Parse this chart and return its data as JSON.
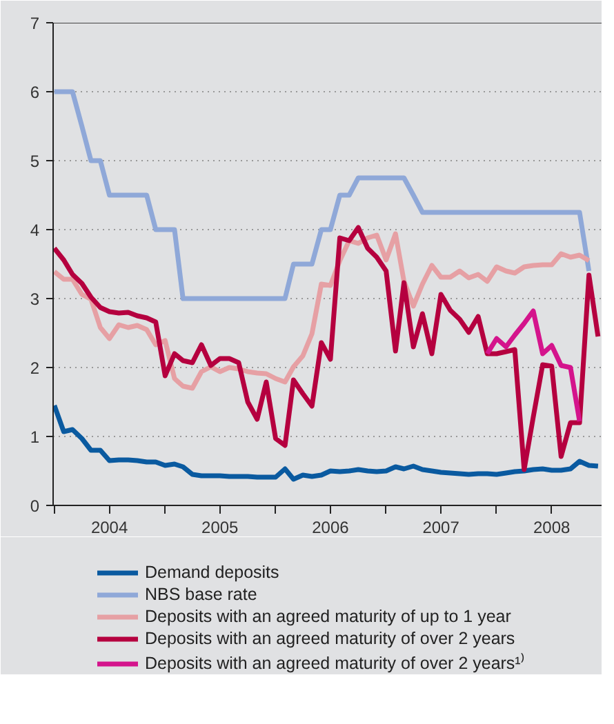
{
  "chart_data": {
    "type": "line",
    "x": [
      "2004-01",
      "2004-02",
      "2004-03",
      "2004-04",
      "2004-05",
      "2004-06",
      "2004-07",
      "2004-08",
      "2004-09",
      "2004-10",
      "2004-11",
      "2004-12",
      "2005-01",
      "2005-02",
      "2005-03",
      "2005-04",
      "2005-05",
      "2005-06",
      "2005-07",
      "2005-08",
      "2005-09",
      "2005-10",
      "2005-11",
      "2005-12",
      "2006-01",
      "2006-02",
      "2006-03",
      "2006-04",
      "2006-05",
      "2006-06",
      "2006-07",
      "2006-08",
      "2006-09",
      "2006-10",
      "2006-11",
      "2006-12",
      "2007-01",
      "2007-02",
      "2007-03",
      "2007-04",
      "2007-05",
      "2007-06",
      "2007-07",
      "2007-08",
      "2007-09",
      "2007-10",
      "2007-11",
      "2007-12",
      "2008-01",
      "2008-02",
      "2008-03",
      "2008-04",
      "2008-05",
      "2008-06",
      "2008-07",
      "2008-08",
      "2008-09",
      "2008-10",
      "2008-11",
      "2008-12"
    ],
    "series": [
      {
        "name": "Demand deposits",
        "color": "#0a5aa0",
        "values": [
          1.45,
          1.07,
          1.1,
          0.97,
          0.8,
          0.8,
          0.65,
          0.66,
          0.66,
          0.65,
          0.63,
          0.63,
          0.58,
          0.6,
          0.56,
          0.45,
          0.43,
          0.43,
          0.43,
          0.42,
          0.42,
          0.42,
          0.41,
          0.41,
          0.41,
          0.53,
          0.38,
          0.44,
          0.42,
          0.44,
          0.5,
          0.49,
          0.5,
          0.52,
          0.5,
          0.49,
          0.5,
          0.56,
          0.53,
          0.57,
          0.52,
          0.5,
          0.48,
          0.47,
          0.46,
          0.45,
          0.46,
          0.46,
          0.45,
          0.47,
          0.49,
          0.5,
          0.52,
          0.53,
          0.51,
          0.51,
          0.53,
          0.64,
          0.58,
          0.57
        ]
      },
      {
        "name": "NBS base rate",
        "color": "#8fa8d8",
        "values": [
          6,
          6,
          6,
          5.5,
          5,
          5,
          4.5,
          4.5,
          4.5,
          4.5,
          4.5,
          4,
          4,
          4,
          3,
          3,
          3,
          3,
          3,
          3,
          3,
          3,
          3,
          3,
          3,
          3,
          3.5,
          3.5,
          3.5,
          4,
          4,
          4.5,
          4.5,
          4.75,
          4.75,
          4.75,
          4.75,
          4.75,
          4.75,
          4.5,
          4.25,
          4.25,
          4.25,
          4.25,
          4.25,
          4.25,
          4.25,
          4.25,
          4.25,
          4.25,
          4.25,
          4.25,
          4.25,
          4.25,
          4.25,
          4.25,
          4.25,
          4.25,
          3.4,
          null
        ]
      },
      {
        "name": "Deposits with an agreed maturity of up to 1 year",
        "color": "#e6a0a4",
        "values": [
          3.39,
          3.28,
          3.28,
          3.06,
          2.99,
          2.58,
          2.42,
          2.62,
          2.58,
          2.61,
          2.55,
          2.33,
          2.39,
          1.84,
          1.73,
          1.7,
          1.94,
          2.01,
          1.94,
          2.0,
          1.98,
          1.94,
          1.92,
          1.91,
          1.84,
          1.79,
          2.01,
          2.17,
          2.49,
          3.21,
          3.19,
          3.55,
          3.84,
          3.8,
          3.88,
          3.92,
          3.56,
          3.94,
          3.25,
          2.89,
          3.21,
          3.48,
          3.31,
          3.31,
          3.4,
          3.3,
          3.35,
          3.25,
          3.46,
          3.4,
          3.37,
          3.46,
          3.48,
          3.49,
          3.49,
          3.65,
          3.6,
          3.63,
          3.55,
          null
        ]
      },
      {
        "name": "Deposits with an agreed maturity of over 2 years",
        "color": "#b5003f",
        "values": [
          3.73,
          3.56,
          3.35,
          3.22,
          3.02,
          2.87,
          2.81,
          2.79,
          2.8,
          2.75,
          2.72,
          2.66,
          1.88,
          2.2,
          2.1,
          2.07,
          2.33,
          2.03,
          2.13,
          2.13,
          2.07,
          1.5,
          1.25,
          1.79,
          0.97,
          0.87,
          1.82,
          1.62,
          1.44,
          2.36,
          2.12,
          3.88,
          3.84,
          4.03,
          3.73,
          3.6,
          3.4,
          2.24,
          3.23,
          2.3,
          2.78,
          2.2,
          3.06,
          2.83,
          2.7,
          2.51,
          2.74,
          2.2,
          2.2,
          2.23,
          2.26,
          0.52,
          1.28,
          2.04,
          2.02,
          0.71,
          1.2,
          1.2,
          3.34,
          2.45
        ]
      },
      {
        "name": "Deposits with an agreed maturity of over 2 years¹⁾",
        "color": "#d4148c",
        "values": [
          null,
          null,
          null,
          null,
          null,
          null,
          null,
          null,
          null,
          null,
          null,
          null,
          null,
          null,
          null,
          null,
          null,
          null,
          null,
          null,
          null,
          null,
          null,
          null,
          null,
          null,
          null,
          null,
          null,
          null,
          null,
          null,
          null,
          null,
          null,
          null,
          null,
          null,
          null,
          null,
          null,
          null,
          null,
          null,
          null,
          null,
          null,
          2.2,
          2.42,
          2.3,
          2.47,
          2.64,
          2.82,
          2.2,
          2.32,
          2.03,
          2.0,
          1.22,
          null,
          null
        ]
      }
    ],
    "xlim": [
      "2003-12-28",
      "2008-12-15"
    ],
    "xticks": [
      {
        "value": "2004-01-01",
        "label": null
      },
      {
        "value": "2004-07-01",
        "label": "2004"
      },
      {
        "value": "2005-01-01",
        "label": null
      },
      {
        "value": "2005-07-01",
        "label": "2005"
      },
      {
        "value": "2006-01-01",
        "label": null
      },
      {
        "value": "2006-07-01",
        "label": "2006"
      },
      {
        "value": "2007-01-01",
        "label": null
      },
      {
        "value": "2007-07-01",
        "label": "2007"
      },
      {
        "value": "2008-01-01",
        "label": null
      },
      {
        "value": "2008-07-01",
        "label": "2008"
      }
    ],
    "ylim": [
      0,
      7
    ],
    "yticks": [
      0,
      1,
      2,
      3,
      4,
      5,
      6,
      7
    ],
    "grid": "y",
    "legend": "bottom",
    "line_style": "solid"
  }
}
